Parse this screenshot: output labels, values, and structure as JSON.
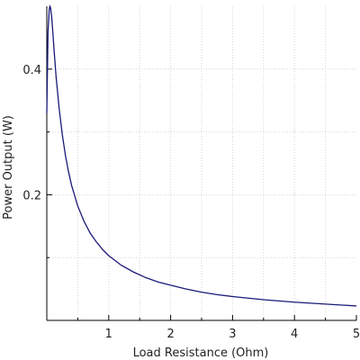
{
  "chart_data": {
    "type": "line",
    "title": "",
    "xlabel": "Load Resistance (Ohm)",
    "ylabel": "Power Output (W)",
    "xlim": [
      0,
      5
    ],
    "ylim": [
      0,
      0.5
    ],
    "grid": true,
    "x_ticks": [
      1,
      2,
      3,
      4,
      5
    ],
    "x_minor_ticks": [
      0.5,
      1.5,
      2.5,
      3.5,
      4.5
    ],
    "y_ticks": [
      0.2,
      0.4
    ],
    "y_minor_ticks": [
      0.1,
      0.3
    ],
    "x_tick_labels": [
      "1",
      "2",
      "3",
      "4",
      "5"
    ],
    "y_tick_labels": [
      "0.2",
      "0.4"
    ],
    "series": [
      {
        "color": "#1a1a7a",
        "x": [
          0.0,
          0.02,
          0.04,
          0.05,
          0.06,
          0.08,
          0.1,
          0.12,
          0.15,
          0.2,
          0.25,
          0.3,
          0.35,
          0.4,
          0.5,
          0.6,
          0.7,
          0.8,
          0.9,
          1.0,
          1.2,
          1.4,
          1.6,
          1.8,
          2.0,
          2.25,
          2.5,
          2.75,
          3.0,
          3.5,
          4.0,
          4.5,
          5.0
        ],
        "y": [
          0.33,
          0.46,
          0.495,
          0.5,
          0.498,
          0.482,
          0.455,
          0.427,
          0.388,
          0.337,
          0.296,
          0.263,
          0.237,
          0.215,
          0.182,
          0.158,
          0.139,
          0.125,
          0.113,
          0.103,
          0.088,
          0.077,
          0.068,
          0.061,
          0.056,
          0.05,
          0.045,
          0.041,
          0.038,
          0.033,
          0.029,
          0.026,
          0.023
        ]
      }
    ]
  }
}
